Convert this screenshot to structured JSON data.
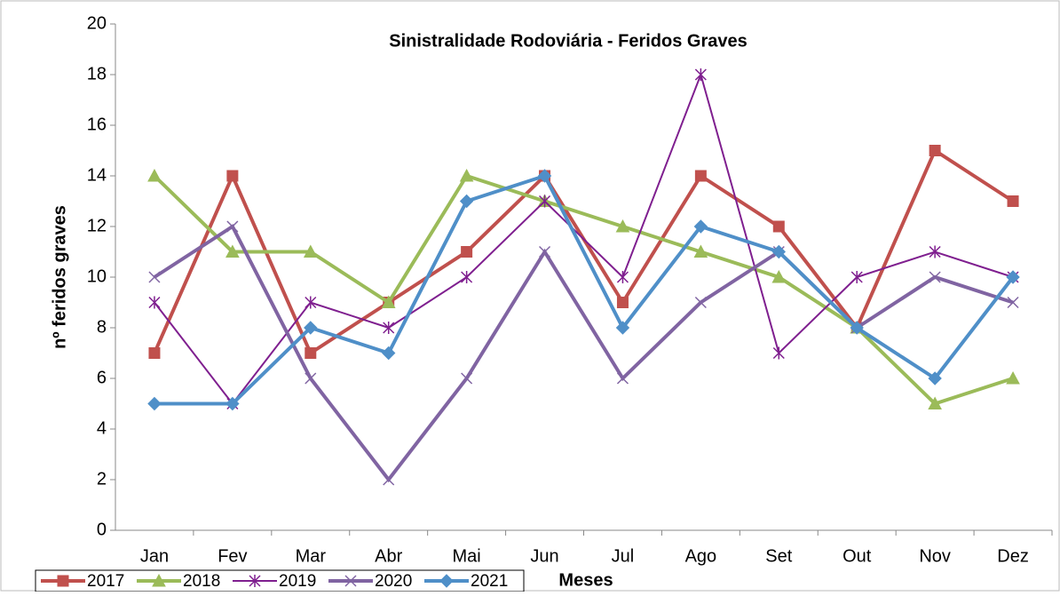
{
  "chart_data": {
    "type": "line",
    "title": "Sinistralidade Rodoviária - Feridos Graves",
    "x_label": "Meses",
    "y_label": "nº feridos graves",
    "categories": [
      "Jan",
      "Fev",
      "Mar",
      "Abr",
      "Mai",
      "Jun",
      "Jul",
      "Ago",
      "Set",
      "Out",
      "Nov",
      "Dez"
    ],
    "series": [
      {
        "name": "2017",
        "color": "#c0504d",
        "marker": "square",
        "values": [
          7,
          14,
          7,
          9,
          11,
          14,
          9,
          14,
          12,
          8,
          15,
          13
        ]
      },
      {
        "name": "2018",
        "color": "#9bbb59",
        "marker": "triangle",
        "values": [
          14,
          11,
          11,
          9,
          14,
          13,
          12,
          11,
          10,
          8,
          5,
          6
        ]
      },
      {
        "name": "2019",
        "color": "#7f1f8f",
        "marker": "star",
        "values": [
          9,
          5,
          9,
          8,
          10,
          13,
          10,
          18,
          7,
          10,
          11,
          10
        ]
      },
      {
        "name": "2020",
        "color": "#8064a2",
        "marker": "x",
        "values": [
          10,
          12,
          6,
          2,
          6,
          11,
          6,
          9,
          11,
          8,
          10,
          9
        ]
      },
      {
        "name": "2021",
        "color": "#4f8fc8",
        "marker": "diamond",
        "values": [
          5,
          5,
          8,
          7,
          13,
          14,
          8,
          12,
          11,
          8,
          6,
          10
        ]
      }
    ],
    "ylim": [
      0,
      20
    ],
    "yticks": [
      0,
      2,
      4,
      6,
      8,
      10,
      12,
      14,
      16,
      18,
      20
    ],
    "grid": false,
    "legend": "bottom-left"
  }
}
